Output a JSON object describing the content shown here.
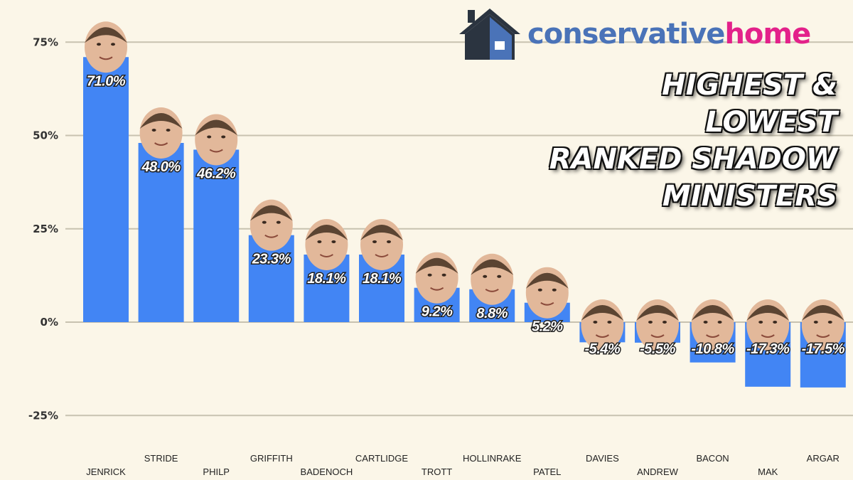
{
  "brand": {
    "name_part1": "conservative",
    "name_part2": "home",
    "color_primary": "#4a73b8",
    "color_accent": "#e3218a",
    "icon": "house-icon"
  },
  "title_lines": [
    "HIGHEST & LOWEST",
    "RANKED SHADOW",
    "MINISTERS"
  ],
  "chart_data": {
    "type": "bar",
    "categories": [
      "JENRICK",
      "STRIDE",
      "PHILP",
      "GRIFFITH",
      "BADENOCH",
      "CARTLIDGE",
      "TROTT",
      "HOLLINRAKE",
      "PATEL",
      "DAVIES",
      "ANDREW",
      "BACON",
      "MAK",
      "ARGAR"
    ],
    "values": [
      71.0,
      48.0,
      46.2,
      23.3,
      18.1,
      18.1,
      9.2,
      8.8,
      5.2,
      -5.4,
      -5.5,
      -10.8,
      -17.3,
      -17.5
    ],
    "value_labels": [
      "71.0%",
      "48.0%",
      "46.2%",
      "23.3%",
      "18.1%",
      "18.1%",
      "9.2%",
      "8.8%",
      "5.2%",
      "-5.4%",
      "-5.5%",
      "-10.8%",
      "-17.3%",
      "-17.5%"
    ],
    "yticks": [
      75,
      50,
      25,
      0,
      -25
    ],
    "ytick_labels": [
      "75%",
      "50%",
      "25%",
      "0%",
      "-25%"
    ],
    "ylim": [
      -32,
      80
    ],
    "grid": true,
    "bar_color": "#4285f4",
    "grid_color": "#c8c2b0",
    "legend": "none"
  }
}
